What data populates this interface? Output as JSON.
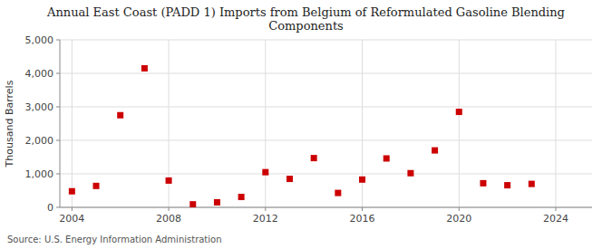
{
  "chart_data": {
    "type": "scatter",
    "title": "Annual East Coast (PADD 1) Imports from Belgium of Reformulated Gasoline Blending\nComponents",
    "ylabel": "Thousand Barrels",
    "source": "Source: U.S. Energy Information Administration",
    "x": [
      2004,
      2005,
      2006,
      2007,
      2008,
      2009,
      2010,
      2011,
      2012,
      2013,
      2014,
      2015,
      2016,
      2017,
      2018,
      2019,
      2020,
      2021,
      2022,
      2023
    ],
    "values": [
      480,
      640,
      2750,
      4150,
      800,
      90,
      150,
      310,
      1050,
      850,
      1470,
      430,
      830,
      1460,
      1020,
      1700,
      2850,
      720,
      660,
      700
    ],
    "color": "#cc0000",
    "marker": "square",
    "xlim": [
      2003.5,
      2025.5
    ],
    "xticks": [
      2004,
      2008,
      2012,
      2016,
      2020,
      2024
    ],
    "ylim": [
      0,
      5000
    ],
    "yticks": [
      0,
      {
        "value": 1000,
        "label": "1,000"
      },
      {
        "value": 2000,
        "label": "2,000"
      },
      {
        "value": 3000,
        "label": "3,000"
      },
      {
        "value": 4000,
        "label": "4,000"
      },
      {
        "value": 5000,
        "label": "5,000"
      }
    ],
    "grid": true
  }
}
